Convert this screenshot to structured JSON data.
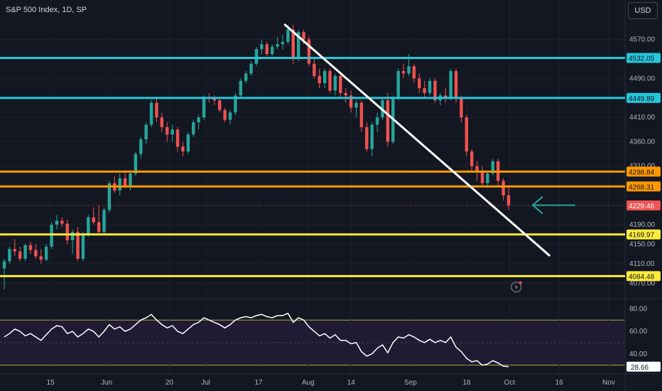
{
  "header": {
    "title": "S&P 500 Index, 1D, SP",
    "currency": "USD"
  },
  "colors": {
    "background": "#131722",
    "grid": "#1e222d",
    "up": "#26a69a",
    "down": "#ef5350",
    "cyan": "#26c6da",
    "orange": "#ff9800",
    "yellow": "#ffeb3b",
    "trendline": "#ffffff",
    "arrow": "#26a69a",
    "rsi": "#ffffff",
    "rsi_band": "#1f1b33"
  },
  "chart_data": [
    {
      "type": "candlestick",
      "title": "S&P 500 Index, 1D, SP",
      "ylim": [
        4050,
        4610
      ],
      "y_ticks": [
        "4570.00",
        "4490.00",
        "4410.00",
        "4360.00",
        "4310.00",
        "4190.00",
        "4150.00",
        "4110.00",
        "4070.00"
      ],
      "x_ticks": [
        "15",
        "Jun",
        "20",
        "Jul",
        "17",
        "Aug",
        "14",
        "Sep",
        "18",
        "Oct",
        "16",
        "Nov"
      ],
      "x_tick_days": [
        14,
        31,
        50,
        61,
        77,
        92,
        105,
        123,
        140,
        153,
        168,
        183
      ],
      "horizontal_levels": [
        {
          "label": "4532.05",
          "value": 4532.05,
          "color": "cyan"
        },
        {
          "label": "4449.89",
          "value": 4449.89,
          "color": "cyan"
        },
        {
          "label": "4298.84",
          "value": 4298.84,
          "color": "orange"
        },
        {
          "label": "4268.31",
          "value": 4268.31,
          "color": "orange"
        },
        {
          "label": "4169.97",
          "value": 4169.97,
          "color": "yellow"
        },
        {
          "label": "4084.48",
          "value": 4084.48,
          "color": "yellow"
        }
      ],
      "last_price": {
        "label": "4229.46",
        "value": 4229.46
      },
      "trendline": {
        "from": {
          "day": 85,
          "value": 4600
        },
        "to": {
          "day": 165,
          "value": 4127
        }
      },
      "arrow": {
        "day": 160,
        "value": 4230
      },
      "candles_ohlc": [
        [
          4100,
          4120,
          4057,
          4115
        ],
        [
          4115,
          4145,
          4110,
          4140
        ],
        [
          4140,
          4160,
          4125,
          4135
        ],
        [
          4135,
          4145,
          4115,
          4120
        ],
        [
          4120,
          4150,
          4115,
          4148
        ],
        [
          4148,
          4155,
          4130,
          4138
        ],
        [
          4138,
          4150,
          4120,
          4125
        ],
        [
          4125,
          4140,
          4110,
          4118
        ],
        [
          4118,
          4150,
          4115,
          4145
        ],
        [
          4145,
          4195,
          4140,
          4190
        ],
        [
          4190,
          4210,
          4180,
          4198
        ],
        [
          4198,
          4205,
          4185,
          4192
        ],
        [
          4192,
          4200,
          4150,
          4158
        ],
        [
          4158,
          4180,
          4130,
          4175
        ],
        [
          4175,
          4185,
          4115,
          4120
        ],
        [
          4120,
          4175,
          4115,
          4170
        ],
        [
          4170,
          4210,
          4165,
          4205
        ],
        [
          4205,
          4225,
          4190,
          4195
        ],
        [
          4195,
          4230,
          4170,
          4175
        ],
        [
          4175,
          4225,
          4170,
          4220
        ],
        [
          4220,
          4280,
          4215,
          4275
        ],
        [
          4275,
          4290,
          4255,
          4260
        ],
        [
          4260,
          4295,
          4250,
          4285
        ],
        [
          4285,
          4300,
          4265,
          4270
        ],
        [
          4270,
          4300,
          4260,
          4295
        ],
        [
          4295,
          4340,
          4290,
          4335
        ],
        [
          4335,
          4370,
          4325,
          4365
        ],
        [
          4365,
          4400,
          4355,
          4395
        ],
        [
          4395,
          4445,
          4390,
          4440
        ],
        [
          4440,
          4450,
          4400,
          4410
        ],
        [
          4410,
          4420,
          4380,
          4390
        ],
        [
          4390,
          4400,
          4360,
          4375
        ],
        [
          4375,
          4395,
          4360,
          4385
        ],
        [
          4385,
          4390,
          4340,
          4350
        ],
        [
          4350,
          4360,
          4330,
          4340
        ],
        [
          4340,
          4380,
          4335,
          4375
        ],
        [
          4375,
          4405,
          4370,
          4400
        ],
        [
          4400,
          4415,
          4385,
          4410
        ],
        [
          4410,
          4455,
          4405,
          4452
        ],
        [
          4452,
          4460,
          4440,
          4448
        ],
        [
          4448,
          4455,
          4435,
          4445
        ],
        [
          4445,
          4450,
          4420,
          4425
        ],
        [
          4425,
          4430,
          4400,
          4405
        ],
        [
          4405,
          4425,
          4395,
          4420
        ],
        [
          4420,
          4460,
          4415,
          4455
        ],
        [
          4455,
          4490,
          4450,
          4485
        ],
        [
          4485,
          4505,
          4480,
          4500
        ],
        [
          4500,
          4525,
          4495,
          4520
        ],
        [
          4520,
          4555,
          4515,
          4550
        ],
        [
          4550,
          4570,
          4540,
          4560
        ],
        [
          4560,
          4565,
          4535,
          4540
        ],
        [
          4540,
          4560,
          4535,
          4555
        ],
        [
          4555,
          4575,
          4550,
          4560
        ],
        [
          4560,
          4580,
          4550,
          4565
        ],
        [
          4565,
          4600,
          4560,
          4590
        ],
        [
          4590,
          4600,
          4520,
          4530
        ],
        [
          4530,
          4590,
          4525,
          4585
        ],
        [
          4585,
          4590,
          4560,
          4570
        ],
        [
          4570,
          4575,
          4515,
          4520
        ],
        [
          4520,
          4530,
          4490,
          4495
        ],
        [
          4495,
          4510,
          4470,
          4480
        ],
        [
          4480,
          4510,
          4470,
          4505
        ],
        [
          4505,
          4510,
          4460,
          4465
        ],
        [
          4465,
          4500,
          4455,
          4495
        ],
        [
          4495,
          4500,
          4450,
          4460
        ],
        [
          4460,
          4470,
          4440,
          4455
        ],
        [
          4455,
          4465,
          4420,
          4430
        ],
        [
          4430,
          4445,
          4410,
          4440
        ],
        [
          4440,
          4445,
          4380,
          4390
        ],
        [
          4390,
          4400,
          4340,
          4345
        ],
        [
          4345,
          4400,
          4330,
          4395
        ],
        [
          4395,
          4420,
          4380,
          4410
        ],
        [
          4410,
          4450,
          4405,
          4445
        ],
        [
          4445,
          4460,
          4350,
          4360
        ],
        [
          4360,
          4455,
          4355,
          4450
        ],
        [
          4450,
          4510,
          4445,
          4505
        ],
        [
          4505,
          4520,
          4490,
          4500
        ],
        [
          4500,
          4540,
          4495,
          4515
        ],
        [
          4515,
          4520,
          4480,
          4490
        ],
        [
          4490,
          4500,
          4460,
          4470
        ],
        [
          4470,
          4485,
          4450,
          4460
        ],
        [
          4460,
          4490,
          4455,
          4485
        ],
        [
          4485,
          4490,
          4440,
          4445
        ],
        [
          4445,
          4460,
          4435,
          4455
        ],
        [
          4455,
          4470,
          4440,
          4450
        ],
        [
          4450,
          4510,
          4445,
          4505
        ],
        [
          4505,
          4510,
          4440,
          4450
        ],
        [
          4450,
          4455,
          4400,
          4410
        ],
        [
          4410,
          4415,
          4330,
          4340
        ],
        [
          4340,
          4345,
          4300,
          4310
        ],
        [
          4310,
          4320,
          4280,
          4300
        ],
        [
          4300,
          4310,
          4270,
          4275
        ],
        [
          4275,
          4300,
          4265,
          4295
        ],
        [
          4295,
          4325,
          4290,
          4320
        ],
        [
          4320,
          4325,
          4270,
          4280
        ],
        [
          4280,
          4285,
          4240,
          4250
        ],
        [
          4250,
          4265,
          4220,
          4229.46
        ]
      ]
    },
    {
      "type": "line",
      "title": "RSI",
      "ylim": [
        26,
        84
      ],
      "y_ticks": [
        "80.00",
        "60.00",
        "40.00"
      ],
      "bands": [
        70,
        30
      ],
      "last_label": "28.66",
      "values": [
        55,
        58,
        62,
        60,
        56,
        58,
        55,
        52,
        57,
        62,
        65,
        64,
        58,
        60,
        55,
        58,
        62,
        60,
        55,
        60,
        66,
        62,
        64,
        60,
        62,
        66,
        70,
        72,
        75,
        70,
        66,
        63,
        65,
        60,
        58,
        62,
        66,
        68,
        72,
        70,
        68,
        66,
        63,
        66,
        70,
        72,
        73,
        72,
        74,
        75,
        73,
        72,
        74,
        74,
        76,
        68,
        72,
        70,
        64,
        60,
        56,
        58,
        54,
        57,
        52,
        52,
        49,
        50,
        42,
        38,
        40,
        45,
        48,
        41,
        50,
        55,
        54,
        57,
        55,
        52,
        50,
        53,
        50,
        52,
        50,
        55,
        46,
        42,
        36,
        33,
        34,
        30,
        31,
        34,
        32,
        29,
        28.66
      ]
    }
  ]
}
